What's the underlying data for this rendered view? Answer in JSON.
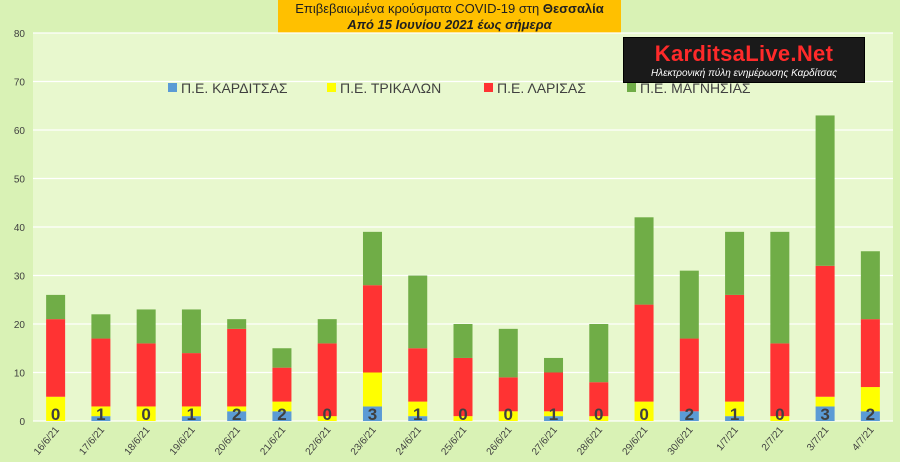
{
  "title": {
    "line1_prefix": "Επιβεβαιωμένα κρούσματα COVID-19 στη ",
    "line1_bold": "Θεσσαλία",
    "line2": "Από 15 Ιουνίου 2021 έως σήμερα"
  },
  "brand": {
    "name": "KarditsaLive.Net",
    "tagline": "Ηλεκτρονική πύλη ενημέρωσης Καρδίτσας"
  },
  "chart_data": {
    "type": "bar",
    "stacked": true,
    "categories": [
      "16/6/21",
      "17/6/21",
      "18/6/21",
      "19/6/21",
      "20/6/21",
      "21/6/21",
      "22/6/21",
      "23/6/21",
      "24/6/21",
      "25/6/21",
      "26/6/21",
      "27/6/21",
      "28/6/21",
      "29/6/21",
      "30/6/21",
      "1/7/21",
      "2/7/21",
      "3/7/21",
      "4/7/21"
    ],
    "series": [
      {
        "name": "Π.Ε. ΚΑΡΔΙΤΣΑΣ",
        "color": "#5b9bd5",
        "values": [
          0,
          1,
          0,
          1,
          2,
          2,
          0,
          3,
          1,
          0,
          0,
          1,
          0,
          0,
          2,
          1,
          0,
          3,
          2
        ]
      },
      {
        "name": "Π.Ε. ΤΡΙΚΑΛΩΝ",
        "color": "#ffff00",
        "values": [
          5,
          2,
          3,
          2,
          1,
          2,
          1,
          7,
          3,
          1,
          2,
          1,
          1,
          4,
          0,
          3,
          1,
          2,
          5
        ]
      },
      {
        "name": "Π.Ε. ΛΑΡΙΣΑΣ",
        "color": "#ff3333",
        "values": [
          16,
          14,
          13,
          11,
          16,
          7,
          15,
          18,
          11,
          12,
          7,
          8,
          7,
          20,
          15,
          22,
          15,
          27,
          14
        ]
      },
      {
        "name": "Π.Ε. ΜΑΓΝΗΣΙΑΣ",
        "color": "#70ad47",
        "values": [
          5,
          5,
          7,
          9,
          2,
          4,
          5,
          11,
          15,
          7,
          10,
          3,
          12,
          18,
          14,
          13,
          23,
          31,
          14
        ]
      }
    ],
    "data_labels_series": "Π.Ε. ΚΑΡΔΙΤΣΑΣ",
    "ylim": [
      0,
      80
    ],
    "yticks": [
      0,
      10,
      20,
      30,
      40,
      50,
      60,
      70,
      80
    ],
    "grid": true,
    "legend": "top",
    "xlabel": "",
    "ylabel": ""
  }
}
